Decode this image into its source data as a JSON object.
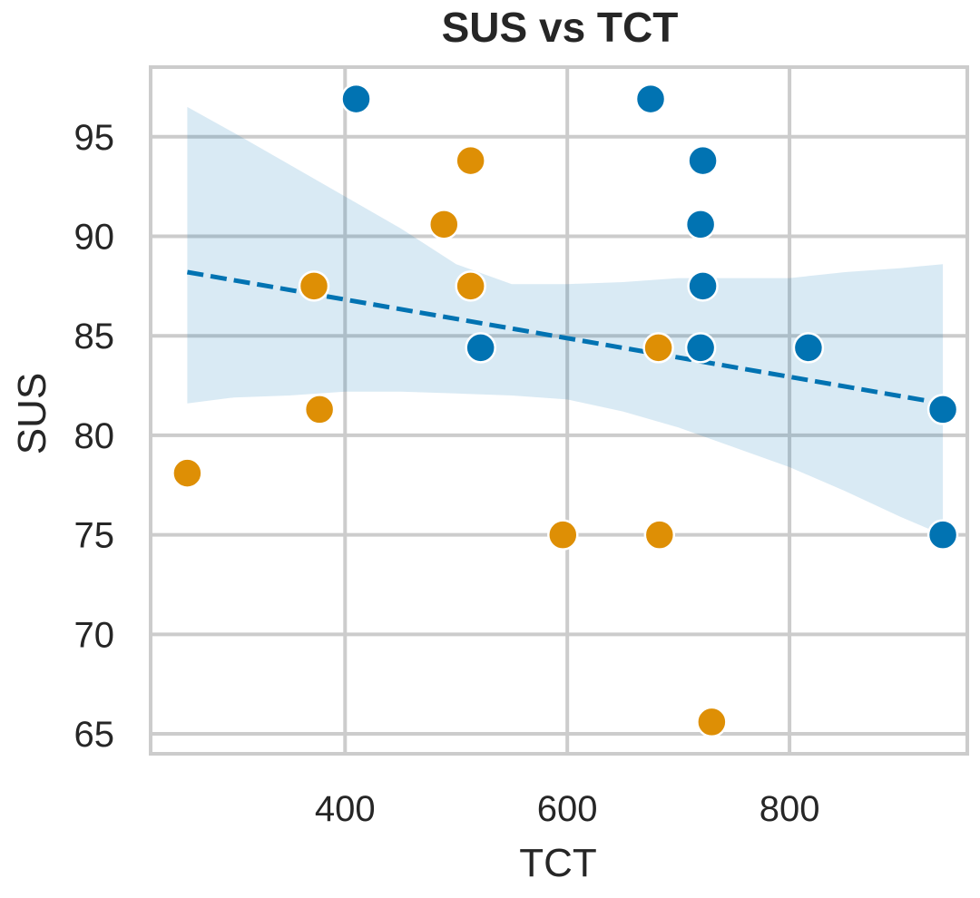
{
  "chart_data": {
    "type": "scatter",
    "title": "SUS vs TCT",
    "xlabel": "TCT",
    "ylabel": "SUS",
    "xlim": [
      225,
      960
    ],
    "ylim": [
      64,
      98.5
    ],
    "xticks": [
      400,
      600,
      800
    ],
    "yticks": [
      65,
      70,
      75,
      80,
      85,
      90,
      95
    ],
    "grid": true,
    "legend": "none",
    "colors": {
      "blue": "#0173b2",
      "orange": "#de8f05",
      "band": "#0173b2",
      "grid": "#cccccc",
      "spine": "#cccccc",
      "text": "#262626"
    },
    "series": [
      {
        "color": "#0173b2",
        "points": [
          {
            "x": 410,
            "y": 96.9
          },
          {
            "x": 675,
            "y": 96.9
          },
          {
            "x": 722,
            "y": 93.8
          },
          {
            "x": 720,
            "y": 90.6
          },
          {
            "x": 722,
            "y": 87.5
          },
          {
            "x": 522,
            "y": 84.4
          },
          {
            "x": 720,
            "y": 84.4
          },
          {
            "x": 817,
            "y": 84.4
          },
          {
            "x": 938,
            "y": 81.3
          },
          {
            "x": 938,
            "y": 75.0
          }
        ]
      },
      {
        "color": "#de8f05",
        "points": [
          {
            "x": 513,
            "y": 93.8
          },
          {
            "x": 489,
            "y": 90.6
          },
          {
            "x": 372,
            "y": 87.5
          },
          {
            "x": 513,
            "y": 87.5
          },
          {
            "x": 682,
            "y": 84.4
          },
          {
            "x": 377,
            "y": 81.3
          },
          {
            "x": 258,
            "y": 78.1
          },
          {
            "x": 596,
            "y": 75.0
          },
          {
            "x": 683,
            "y": 75.0
          },
          {
            "x": 730,
            "y": 65.6
          }
        ]
      }
    ],
    "regression": {
      "style": "dashed",
      "color": "#0173b2",
      "x": [
        258,
        938
      ],
      "y": [
        88.2,
        81.6
      ]
    },
    "confidence_band": {
      "color": "#0173b2",
      "opacity": 0.15,
      "x": [
        258,
        300,
        350,
        400,
        450,
        500,
        550,
        600,
        650,
        700,
        750,
        800,
        850,
        900,
        938
      ],
      "upper": [
        96.5,
        95.2,
        93.6,
        92.0,
        90.4,
        88.6,
        87.6,
        87.6,
        87.7,
        87.9,
        87.9,
        87.9,
        88.2,
        88.4,
        88.6
      ],
      "lower": [
        81.6,
        81.9,
        82.0,
        82.2,
        82.2,
        82.1,
        82.0,
        81.8,
        81.2,
        80.4,
        79.4,
        78.4,
        77.2,
        75.9,
        75.0
      ]
    }
  }
}
